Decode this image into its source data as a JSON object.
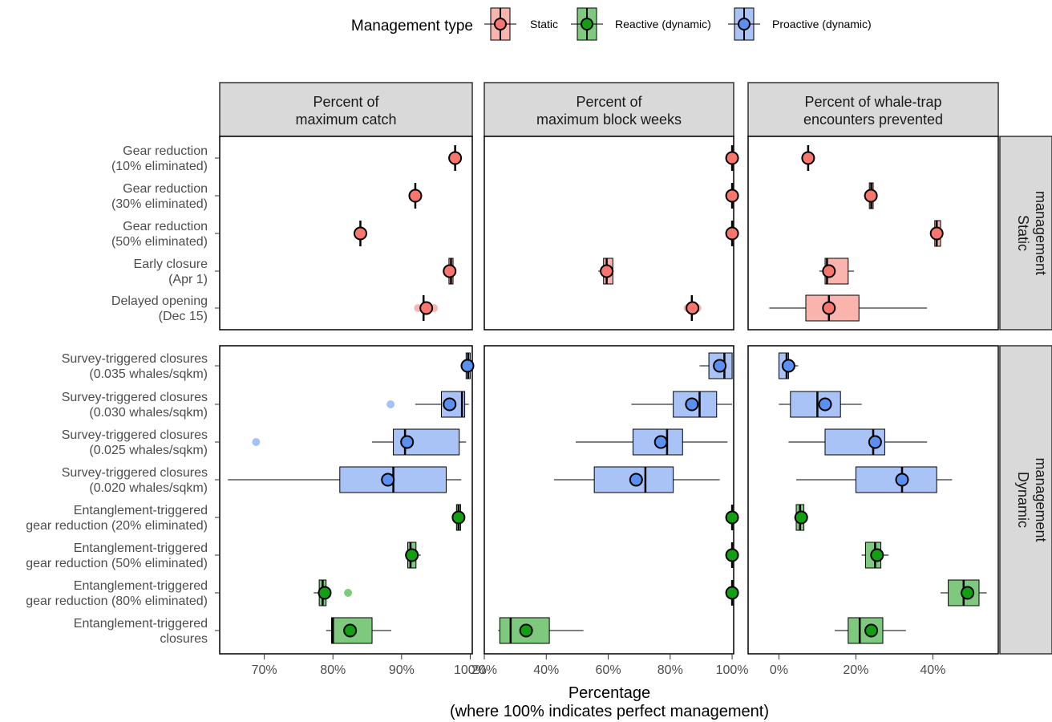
{
  "legend": {
    "title": "Management type",
    "items": [
      {
        "label": "Static",
        "color": "#f8766d",
        "box_color": "#f9b4ad"
      },
      {
        "label": "Reactive (dynamic)",
        "color": "#12a012",
        "box_color": "#7fc97f"
      },
      {
        "label": "Proactive (dynamic)",
        "color": "#5b8ff0",
        "box_color": "#a9c3f7"
      }
    ]
  },
  "chart_data": {
    "type": "boxplot",
    "facet_columns": [
      "Percent of\nmaximum catch",
      "Percent of\nmaximum block weeks",
      "Percent of whale-trap\nencounters prevented"
    ],
    "facet_rows": [
      "Static\nmanagement",
      "Dynamic\nmanagement"
    ],
    "xlabel": "Percentage\n(where 100% indicates perfect management)",
    "axes": [
      {
        "xlim": [
          63.5,
          100.3
        ],
        "ticks": [
          70,
          80,
          90,
          100
        ],
        "tick_labels": [
          "70%",
          "80%",
          "90%",
          "100%"
        ]
      },
      {
        "xlim": [
          20,
          100.5
        ],
        "ticks": [
          20,
          40,
          60,
          80,
          100
        ],
        "tick_labels": [
          "20%",
          "40%",
          "60%",
          "80%",
          "100%"
        ]
      },
      {
        "xlim": [
          -8,
          57
        ],
        "ticks": [
          0,
          20,
          40
        ],
        "tick_labels": [
          "0%",
          "20%",
          "40%"
        ]
      }
    ],
    "rows": [
      {
        "label": "Gear reduction\n(10% eliminated)",
        "group": 0,
        "type": "Static",
        "stats": [
          {
            "q1": 97.8,
            "median": 97.8,
            "q3": 97.8,
            "wlo": 97.8,
            "whi": 97.8,
            "mean": 97.8,
            "outliers": []
          },
          {
            "q1": 100,
            "median": 100,
            "q3": 100,
            "wlo": 100,
            "whi": 100,
            "mean": 100,
            "outliers": []
          },
          {
            "q1": 7.6,
            "median": 7.6,
            "q3": 7.6,
            "wlo": 7.6,
            "whi": 7.6,
            "mean": 7.6,
            "outliers": []
          }
        ]
      },
      {
        "label": "Gear reduction\n(30% eliminated)",
        "group": 0,
        "type": "Static",
        "stats": [
          {
            "q1": 92,
            "median": 92,
            "q3": 92,
            "wlo": 92,
            "whi": 92,
            "mean": 92,
            "outliers": []
          },
          {
            "q1": 100,
            "median": 100,
            "q3": 100,
            "wlo": 100,
            "whi": 100,
            "mean": 100,
            "outliers": []
          },
          {
            "q1": 23.5,
            "median": 24,
            "q3": 24.5,
            "wlo": 23.5,
            "whi": 24.5,
            "mean": 23.9,
            "outliers": []
          }
        ]
      },
      {
        "label": "Gear reduction\n(50% eliminated)",
        "group": 0,
        "type": "Static",
        "stats": [
          {
            "q1": 84,
            "median": 84,
            "q3": 84,
            "wlo": 84,
            "whi": 84,
            "mean": 84,
            "outliers": []
          },
          {
            "q1": 100,
            "median": 100,
            "q3": 100,
            "wlo": 100,
            "whi": 100,
            "mean": 100,
            "outliers": []
          },
          {
            "q1": 40.5,
            "median": 41,
            "q3": 42,
            "wlo": 40.2,
            "whi": 42.3,
            "mean": 41,
            "outliers": []
          }
        ]
      },
      {
        "label": "Early closure\n(Apr 1)",
        "group": 0,
        "type": "Static",
        "stats": [
          {
            "q1": 96.9,
            "median": 97.2,
            "q3": 97.5,
            "wlo": 96.8,
            "whi": 97.6,
            "mean": 97.0,
            "outliers": []
          },
          {
            "q1": 58.5,
            "median": 59.5,
            "q3": 61.5,
            "wlo": 56.8,
            "whi": 61.8,
            "mean": 59.5,
            "outliers": []
          },
          {
            "q1": 12,
            "median": 12.5,
            "q3": 18,
            "wlo": 10.5,
            "whi": 19.5,
            "mean": 13,
            "outliers": []
          }
        ]
      },
      {
        "label": "Delayed opening\n(Dec 15)",
        "group": 0,
        "type": "Static",
        "stats": [
          {
            "q1": 93.2,
            "median": 93.2,
            "q3": 93.2,
            "wlo": 93.2,
            "whi": 93.2,
            "mean": 93.6,
            "outliers": [
              92.4,
              94.7
            ]
          },
          {
            "q1": 87,
            "median": 87,
            "q3": 87,
            "wlo": 87,
            "whi": 87,
            "mean": 87.2,
            "outliers": [
              85.6,
              88.8
            ]
          },
          {
            "q1": 7,
            "median": 13,
            "q3": 20.8,
            "wlo": -2.5,
            "whi": 38.5,
            "mean": 13,
            "outliers": []
          }
        ]
      },
      {
        "label": "Survey-triggered closures\n(0.035 whales/sqkm)",
        "group": 1,
        "type": "Proactive (dynamic)",
        "stats": [
          {
            "q1": 99.4,
            "median": 99.7,
            "q3": 100,
            "wlo": 99.4,
            "whi": 100,
            "mean": 99.6,
            "outliers": []
          },
          {
            "q1": 92.5,
            "median": 97.5,
            "q3": 100,
            "wlo": 89.5,
            "whi": 100,
            "mean": 96,
            "outliers": []
          },
          {
            "q1": 0,
            "median": 2,
            "q3": 2.5,
            "wlo": 0,
            "whi": 5,
            "mean": 2.5,
            "outliers": []
          }
        ]
      },
      {
        "label": "Survey-triggered closures\n(0.030 whales/sqkm)",
        "group": 1,
        "type": "Proactive (dynamic)",
        "stats": [
          {
            "q1": 95.8,
            "median": 98.8,
            "q3": 99.2,
            "wlo": 92,
            "whi": 99.8,
            "mean": 97,
            "outliers": [
              88.4
            ]
          },
          {
            "q1": 81,
            "median": 89.5,
            "q3": 95,
            "wlo": 67.5,
            "whi": 100,
            "mean": 87,
            "outliers": []
          },
          {
            "q1": 3,
            "median": 10,
            "q3": 16,
            "wlo": 0,
            "whi": 21.5,
            "mean": 12,
            "outliers": []
          }
        ]
      },
      {
        "label": "Survey-triggered closures\n(0.025 whales/sqkm)",
        "group": 1,
        "type": "Proactive (dynamic)",
        "stats": [
          {
            "q1": 88.8,
            "median": 90.5,
            "q3": 98.4,
            "wlo": 85.7,
            "whi": 99.4,
            "mean": 90.8,
            "outliers": [
              68.8
            ]
          },
          {
            "q1": 68,
            "median": 79,
            "q3": 84,
            "wlo": 49.5,
            "whi": 98.5,
            "mean": 77,
            "outliers": []
          },
          {
            "q1": 12,
            "median": 24.5,
            "q3": 27.5,
            "wlo": 2.5,
            "whi": 38.5,
            "mean": 25,
            "outliers": []
          }
        ]
      },
      {
        "label": "Survey-triggered closures\n(0.020 whales/sqkm)",
        "group": 1,
        "type": "Proactive (dynamic)",
        "stats": [
          {
            "q1": 81,
            "median": 88.8,
            "q3": 96.5,
            "wlo": 64.7,
            "whi": 98.7,
            "mean": 88,
            "outliers": []
          },
          {
            "q1": 55.5,
            "median": 72,
            "q3": 81,
            "wlo": 42.5,
            "whi": 96,
            "mean": 69,
            "outliers": []
          },
          {
            "q1": 20,
            "median": 32,
            "q3": 41,
            "wlo": 4.5,
            "whi": 45,
            "mean": 32,
            "outliers": []
          }
        ]
      },
      {
        "label": "Entanglement-triggered\ngear reduction (20% eliminated)",
        "group": 1,
        "type": "Reactive (dynamic)",
        "stats": [
          {
            "q1": 98,
            "median": 98.3,
            "q3": 98.6,
            "wlo": 97.9,
            "whi": 98.7,
            "mean": 98.3,
            "outliers": []
          },
          {
            "q1": 100,
            "median": 100,
            "q3": 100,
            "wlo": 100,
            "whi": 100,
            "mean": 100,
            "outliers": []
          },
          {
            "q1": 4.5,
            "median": 5.5,
            "q3": 6.5,
            "wlo": 4,
            "whi": 7,
            "mean": 5.8,
            "outliers": []
          }
        ]
      },
      {
        "label": "Entanglement-triggered\ngear reduction (50% eliminated)",
        "group": 1,
        "type": "Reactive (dynamic)",
        "stats": [
          {
            "q1": 90.9,
            "median": 91.3,
            "q3": 92.1,
            "wlo": 90.8,
            "whi": 92.8,
            "mean": 91.5,
            "outliers": []
          },
          {
            "q1": 100,
            "median": 100,
            "q3": 100,
            "wlo": 100,
            "whi": 100,
            "mean": 100,
            "outliers": []
          },
          {
            "q1": 22.5,
            "median": 25,
            "q3": 26.5,
            "wlo": 21.5,
            "whi": 28.5,
            "mean": 25.5,
            "outliers": []
          }
        ]
      },
      {
        "label": "Entanglement-triggered\ngear reduction (80% eliminated)",
        "group": 1,
        "type": "Reactive (dynamic)",
        "stats": [
          {
            "q1": 78,
            "median": 78.5,
            "q3": 79,
            "wlo": 77.2,
            "whi": 79.4,
            "mean": 78.8,
            "outliers": [
              82.2
            ]
          },
          {
            "q1": 100,
            "median": 100,
            "q3": 100,
            "wlo": 100,
            "whi": 100,
            "mean": 100,
            "outliers": []
          },
          {
            "q1": 44,
            "median": 48,
            "q3": 52,
            "wlo": 42,
            "whi": 54,
            "mean": 49,
            "outliers": []
          }
        ]
      },
      {
        "label": "Entanglement-triggered\nclosures",
        "group": 1,
        "type": "Reactive (dynamic)",
        "stats": [
          {
            "q1": 79.8,
            "median": 80,
            "q3": 85.7,
            "wlo": 79,
            "whi": 88.5,
            "mean": 82.5,
            "outliers": []
          },
          {
            "q1": 25,
            "median": 28.5,
            "q3": 41,
            "wlo": 24.5,
            "whi": 52,
            "mean": 33.5,
            "outliers": []
          },
          {
            "q1": 18,
            "median": 21,
            "q3": 27,
            "wlo": 14.5,
            "whi": 33,
            "mean": 24,
            "outliers": []
          }
        ]
      }
    ]
  }
}
